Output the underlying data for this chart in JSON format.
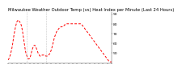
{
  "title": "Milwaukee Weather Outdoor Temp (vs) Heat Index per Minute (Last 24 Hours)",
  "background_color": "#ffffff",
  "line_color": "#ff0000",
  "line_style": "--",
  "line_width": 0.7,
  "vline_color": "#999999",
  "vline_style": ":",
  "vline_positions": [
    0.18,
    0.37
  ],
  "ylim": [
    40,
    92
  ],
  "yticks": [
    50,
    60,
    70,
    80,
    90
  ],
  "curve_data": [
    43,
    44,
    46,
    48,
    51,
    54,
    58,
    63,
    68,
    72,
    76,
    79,
    82,
    83,
    84,
    83,
    82,
    81,
    79,
    76,
    72,
    67,
    62,
    57,
    52,
    49,
    47,
    45,
    44,
    44,
    45,
    47,
    50,
    53,
    55,
    57,
    58,
    58,
    57,
    55,
    53,
    51,
    49,
    48,
    47,
    47,
    47,
    48,
    48,
    48,
    48,
    48,
    47,
    47,
    47,
    47,
    48,
    49,
    50,
    52,
    54,
    57,
    60,
    63,
    66,
    68,
    70,
    72,
    73,
    74,
    75,
    76,
    76,
    77,
    77,
    77,
    78,
    78,
    79,
    79,
    80,
    80,
    80,
    80,
    80,
    80,
    80,
    80,
    80,
    80,
    80,
    80,
    80,
    80,
    80,
    80,
    80,
    80,
    80,
    80,
    80,
    80,
    79,
    78,
    77,
    76,
    75,
    74,
    73,
    72,
    71,
    70,
    69,
    68,
    67,
    66,
    65,
    64,
    63,
    62,
    61,
    60,
    59,
    58,
    57,
    56,
    55,
    54,
    53,
    52,
    51,
    50,
    49,
    48,
    47,
    46,
    45,
    44,
    43,
    42,
    41,
    41,
    41,
    41
  ],
  "title_fontsize": 3.8,
  "tick_fontsize": 3.2,
  "x_tick_count": 25
}
